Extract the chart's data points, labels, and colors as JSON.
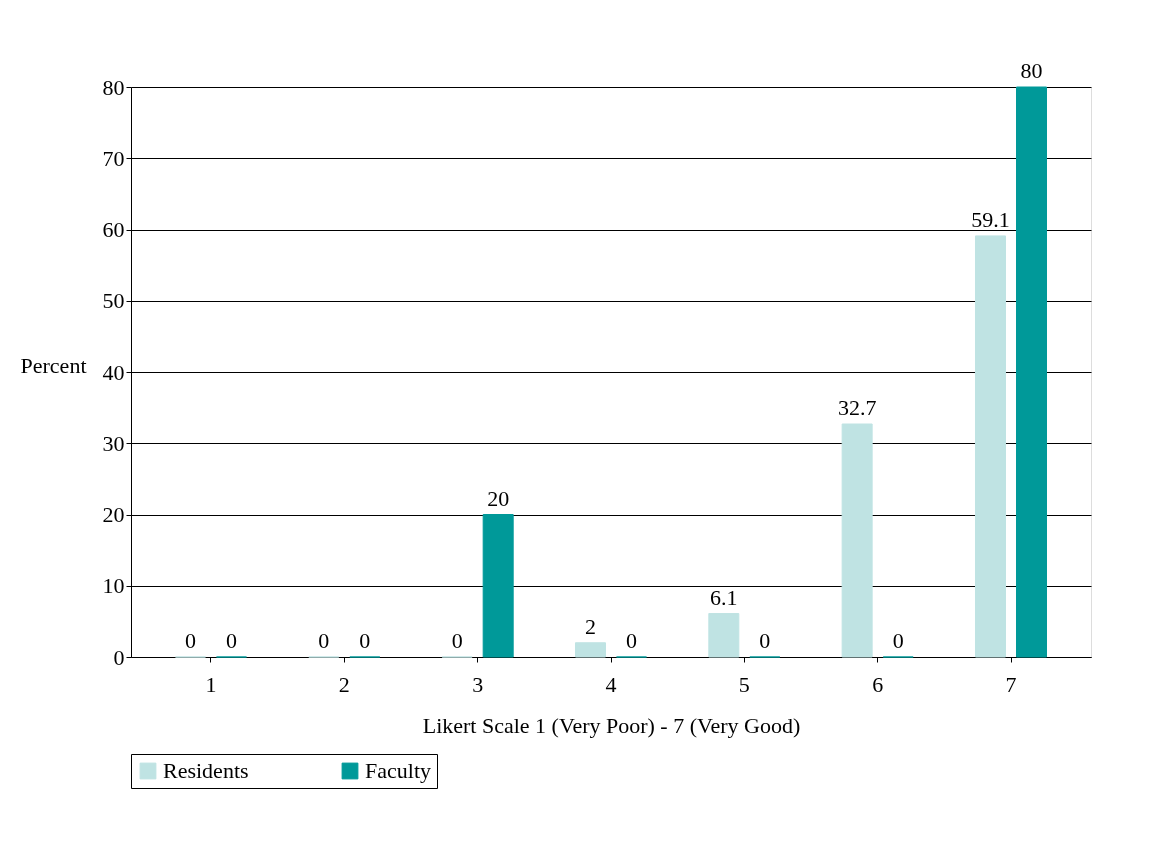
{
  "chart_data": {
    "type": "bar",
    "xlabel": "Likert Scale 1 (Very Poor) - 7 (Very Good)",
    "ylabel": "Percent",
    "categories": [
      "1",
      "2",
      "3",
      "4",
      "5",
      "6",
      "7"
    ],
    "series": [
      {
        "name": "Residents",
        "color": "#bfe3e3",
        "values": [
          0,
          0,
          0,
          2,
          6.1,
          32.7,
          59.1
        ]
      },
      {
        "name": "Faculty",
        "color": "#009999",
        "values": [
          0,
          0,
          20,
          0,
          0,
          0,
          80
        ]
      }
    ],
    "ylim": [
      0,
      80
    ],
    "yticks": [
      0,
      10,
      20,
      30,
      40,
      50,
      60,
      70,
      80
    ],
    "grid": "y",
    "legend": "bottom",
    "data_labels": true
  }
}
